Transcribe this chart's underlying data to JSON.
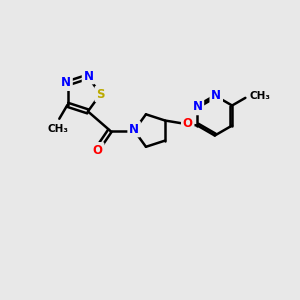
{
  "bg_color": "#e8e8e8",
  "bond_color": "#000000",
  "bond_width": 1.8,
  "atom_colors": {
    "N": "#0000ff",
    "S": "#bbaa00",
    "O": "#ff0000",
    "C": "#000000"
  },
  "font_size_atom": 8.5,
  "font_size_methyl": 7.5,
  "xlim": [
    0,
    10
  ],
  "ylim": [
    0,
    10
  ],
  "figsize": [
    3.0,
    3.0
  ],
  "dpi": 100
}
